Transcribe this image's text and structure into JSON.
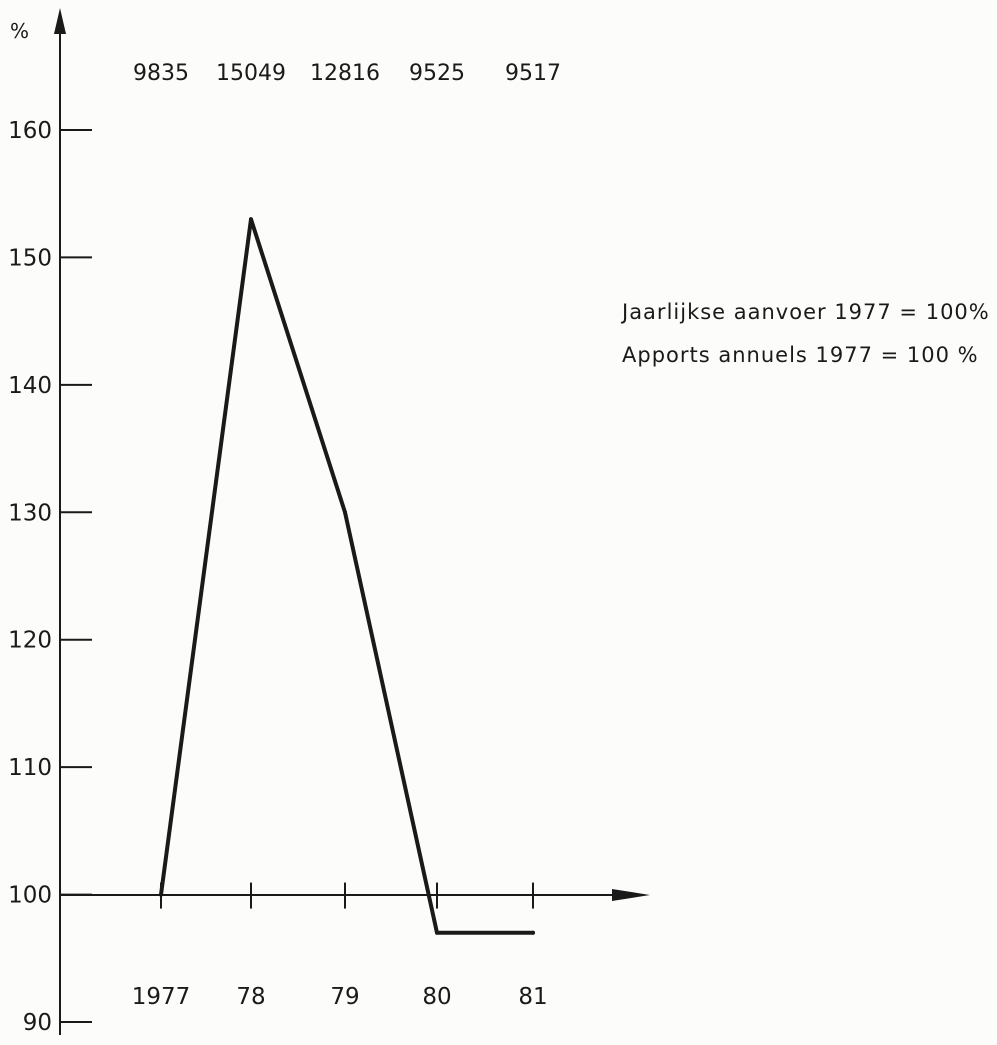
{
  "chart_data": {
    "type": "line",
    "title": "",
    "xlabel": "",
    "ylabel": "%",
    "categories": [
      "1977",
      "78",
      "79",
      "80",
      "81"
    ],
    "absolute_values": [
      "9835",
      "15049",
      "12816",
      "9525",
      "9517"
    ],
    "series": [
      {
        "values": [
          100,
          153,
          130,
          97,
          97
        ]
      }
    ],
    "ylim": [
      90,
      160
    ],
    "yticks": [
      90,
      100,
      110,
      120,
      130,
      140,
      150,
      160
    ],
    "xaxis_at": 100,
    "legend": [
      "Jaarlijkse aanvoer 1977 = 100%",
      "Apports annuels 1977 = 100 %"
    ],
    "legend_position": "right",
    "grid": false,
    "line_color": "#1a1a1a"
  }
}
